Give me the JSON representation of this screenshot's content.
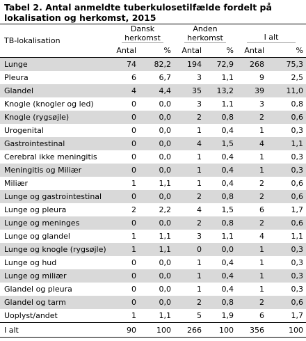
{
  "title_line1": "Tabel 2. Antal anmeldte tuberkulosetilfælde fordelt på",
  "title_line2": "lokalisation og herkomst, 2015",
  "header": {
    "row_header": "TB-lokalisation",
    "group1_line1": "Dansk",
    "group1_line2": "herkomst",
    "group2_line1": "Anden",
    "group2_line2": "herkomst",
    "group3": "I alt",
    "antal": "Antal",
    "pct": "%"
  },
  "rows": [
    {
      "label": "Lunge",
      "v": [
        "74",
        "82,2",
        "194",
        "72,9",
        "268",
        "75,3"
      ]
    },
    {
      "label": "Pleura",
      "v": [
        "6",
        "6,7",
        "3",
        "1,1",
        "9",
        "2,5"
      ]
    },
    {
      "label": "Glandel",
      "v": [
        "4",
        "4,4",
        "35",
        "13,2",
        "39",
        "11,0"
      ]
    },
    {
      "label": "Knogle (knogler og led)",
      "v": [
        "0",
        "0,0",
        "3",
        "1,1",
        "3",
        "0,8"
      ]
    },
    {
      "label": "Knogle (rygsøjle)",
      "v": [
        "0",
        "0,0",
        "2",
        "0,8",
        "2",
        "0,6"
      ]
    },
    {
      "label": "Urogenital",
      "v": [
        "0",
        "0,0",
        "1",
        "0,4",
        "1",
        "0,3"
      ]
    },
    {
      "label": "Gastrointestinal",
      "v": [
        "0",
        "0,0",
        "4",
        "1,5",
        "4",
        "1,1"
      ]
    },
    {
      "label": "Cerebral ikke meningitis",
      "v": [
        "0",
        "0,0",
        "1",
        "0,4",
        "1",
        "0,3"
      ]
    },
    {
      "label": "Meningitis og Miliær",
      "v": [
        "0",
        "0,0",
        "1",
        "0,4",
        "1",
        "0,3"
      ]
    },
    {
      "label": "Miliær",
      "v": [
        "1",
        "1,1",
        "1",
        "0,4",
        "2",
        "0,6"
      ]
    },
    {
      "label": "Lunge og gastrointestinal",
      "v": [
        "0",
        "0,0",
        "2",
        "0,8",
        "2",
        "0,6"
      ]
    },
    {
      "label": "Lunge og pleura",
      "v": [
        "2",
        "2,2",
        "4",
        "1,5",
        "6",
        "1,7"
      ]
    },
    {
      "label": "Lunge og meninges",
      "v": [
        "0",
        "0,0",
        "2",
        "0,8",
        "2",
        "0,6"
      ]
    },
    {
      "label": "Lunge og glandel",
      "v": [
        "1",
        "1,1",
        "3",
        "1,1",
        "4",
        "1,1"
      ]
    },
    {
      "label": "Lunge og knogle (rygsøjle)",
      "v": [
        "1",
        "1,1",
        "0",
        "0,0",
        "1",
        "0,3"
      ]
    },
    {
      "label": "Lunge og hud",
      "v": [
        "0",
        "0,0",
        "1",
        "0,4",
        "1",
        "0,3"
      ]
    },
    {
      "label": "Lunge og miliær",
      "v": [
        "0",
        "0,0",
        "1",
        "0,4",
        "1",
        "0,3"
      ]
    },
    {
      "label": "Glandel og pleura",
      "v": [
        "0",
        "0,0",
        "1",
        "0,4",
        "1",
        "0,3"
      ]
    },
    {
      "label": "Glandel og tarm",
      "v": [
        "0",
        "0,0",
        "2",
        "0,8",
        "2",
        "0,6"
      ]
    },
    {
      "label": "Uoplyst/andet",
      "v": [
        "1",
        "1,1",
        "5",
        "1,9",
        "6",
        "1,7"
      ]
    }
  ],
  "total": {
    "label": "I alt",
    "v": [
      "90",
      "100",
      "266",
      "100",
      "356",
      "100"
    ]
  }
}
